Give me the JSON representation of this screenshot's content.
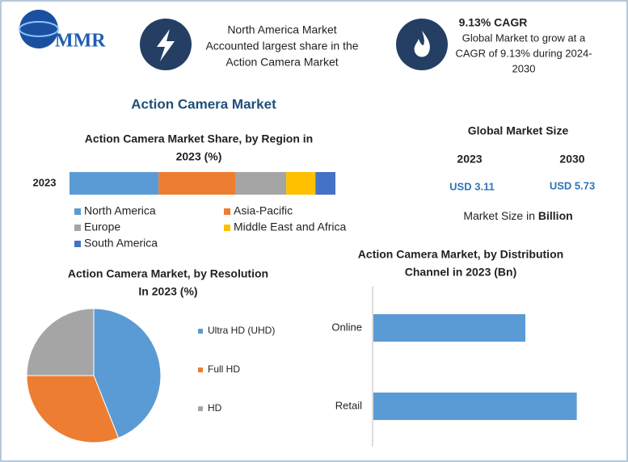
{
  "header": {
    "logo": "MMR",
    "highlight": [
      "North America Market",
      "Accounted largest share in the",
      "Action Camera Market"
    ],
    "cagr_title": "9.13% CAGR",
    "cagr_text": [
      "Global Market to grow at a",
      "CAGR of 9.13% during 2024-",
      "2030"
    ]
  },
  "title": "Action Camera Market",
  "market_size": {
    "title": "Global Market Size",
    "years": [
      "2023",
      "2030"
    ],
    "values": [
      "USD 3.11",
      "USD 5.73"
    ],
    "note": "Market Size in",
    "unit": "Billion"
  },
  "chart_data": [
    {
      "type": "stacked-bar",
      "title": [
        "Action Camera Market Share, by Region in",
        "2023 (%)"
      ],
      "categories": [
        "2023"
      ],
      "xlim": [
        0,
        100
      ],
      "series": [
        {
          "name": "North America",
          "color": "#5b9bd5",
          "values": [
            33.5
          ]
        },
        {
          "name": "Asia-Pacific",
          "color": "#ed7d31",
          "values": [
            29
          ]
        },
        {
          "name": "Europe",
          "color": "#a5a5a5",
          "values": [
            19
          ]
        },
        {
          "name": "Middle East and Africa",
          "color": "#ffc000",
          "values": [
            11
          ]
        },
        {
          "name": "South America",
          "color": "#4472c4",
          "values": [
            7.5
          ]
        }
      ]
    },
    {
      "type": "pie",
      "title": [
        "Action Camera Market, by Resolution",
        "In 2023 (%)"
      ],
      "categories": [
        "Ultra HD (UHD)",
        "Full HD",
        "HD"
      ],
      "values": [
        44,
        31,
        25
      ],
      "colors": [
        "#5b9bd5",
        "#ed7d31",
        "#a5a5a5"
      ]
    },
    {
      "type": "hbar",
      "title": [
        "Action Camera Market, by Distribution",
        "Channel in 2023 (Bn)"
      ],
      "categories": [
        "Online",
        "Retail"
      ],
      "values": [
        1.33,
        1.78
      ],
      "color": "#5b9bd5",
      "xlim": [
        0,
        2.2
      ]
    }
  ]
}
